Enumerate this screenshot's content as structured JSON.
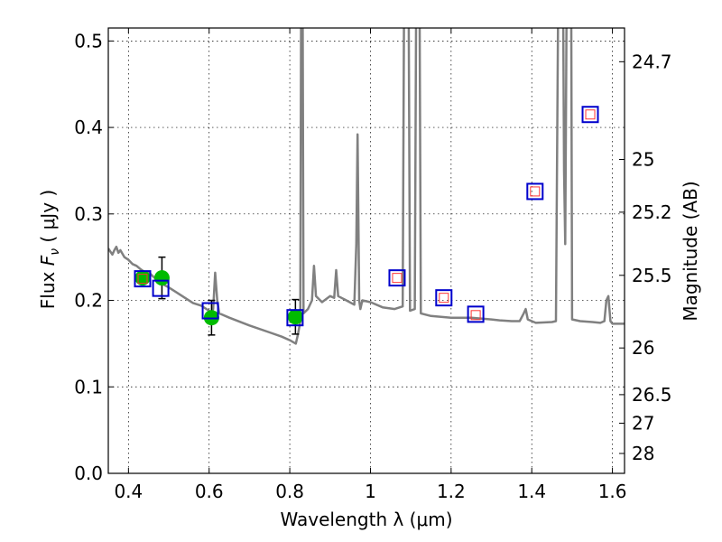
{
  "chart_data": {
    "type": "scatter",
    "title": "",
    "xlabel": "Wavelength  λ (μm)",
    "ylabel": "Flux  F_ν  ( μJy )",
    "ylabel_right": "Magnitude (AB)",
    "xlim": [
      0.35,
      1.63
    ],
    "ylim": [
      0.0,
      0.515
    ],
    "grid": true,
    "x_ticks": [
      {
        "v": 0.4,
        "label": "0.4"
      },
      {
        "v": 0.6,
        "label": "0.6"
      },
      {
        "v": 0.8,
        "label": "0.8"
      },
      {
        "v": 1.0,
        "label": "1"
      },
      {
        "v": 1.2,
        "label": "1.2"
      },
      {
        "v": 1.4,
        "label": "1.4"
      },
      {
        "v": 1.6,
        "label": "1.6"
      }
    ],
    "y_ticks": [
      {
        "v": 0.0,
        "label": "0.0"
      },
      {
        "v": 0.1,
        "label": "0.1"
      },
      {
        "v": 0.2,
        "label": "0.2"
      },
      {
        "v": 0.3,
        "label": "0.3"
      },
      {
        "v": 0.4,
        "label": "0.4"
      },
      {
        "v": 0.5,
        "label": "0.5"
      }
    ],
    "right_ticks": [
      {
        "flux": 0.476,
        "label": "24.7"
      },
      {
        "flux": 0.363,
        "label": "25"
      },
      {
        "flux": 0.302,
        "label": "25.2"
      },
      {
        "flux": 0.229,
        "label": "25.5"
      },
      {
        "flux": 0.145,
        "label": "26"
      },
      {
        "flux": 0.091,
        "label": "26.5"
      },
      {
        "flux": 0.058,
        "label": "27"
      },
      {
        "flux": 0.023,
        "label": "28"
      }
    ],
    "spectrum": {
      "color": "#808080",
      "points": [
        [
          0.35,
          0.26
        ],
        [
          0.36,
          0.253
        ],
        [
          0.365,
          0.258
        ],
        [
          0.37,
          0.262
        ],
        [
          0.375,
          0.255
        ],
        [
          0.38,
          0.258
        ],
        [
          0.39,
          0.25
        ],
        [
          0.4,
          0.247
        ],
        [
          0.41,
          0.242
        ],
        [
          0.42,
          0.24
        ],
        [
          0.43,
          0.236
        ],
        [
          0.44,
          0.233
        ],
        [
          0.45,
          0.233
        ],
        [
          0.46,
          0.228
        ],
        [
          0.47,
          0.224
        ],
        [
          0.48,
          0.22
        ],
        [
          0.5,
          0.215
        ],
        [
          0.52,
          0.209
        ],
        [
          0.54,
          0.203
        ],
        [
          0.56,
          0.197
        ],
        [
          0.58,
          0.194
        ],
        [
          0.6,
          0.188
        ],
        [
          0.605,
          0.186
        ],
        [
          0.61,
          0.19
        ],
        [
          0.615,
          0.232
        ],
        [
          0.62,
          0.2
        ],
        [
          0.625,
          0.185
        ],
        [
          0.65,
          0.18
        ],
        [
          0.7,
          0.171
        ],
        [
          0.75,
          0.163
        ],
        [
          0.78,
          0.158
        ],
        [
          0.8,
          0.154
        ],
        [
          0.815,
          0.15
        ],
        [
          0.82,
          0.16
        ],
        [
          0.826,
          0.175
        ],
        [
          0.828,
          0.52
        ],
        [
          0.832,
          0.52
        ],
        [
          0.834,
          0.185
        ],
        [
          0.845,
          0.19
        ],
        [
          0.855,
          0.2
        ],
        [
          0.86,
          0.24
        ],
        [
          0.865,
          0.205
        ],
        [
          0.88,
          0.198
        ],
        [
          0.9,
          0.205
        ],
        [
          0.91,
          0.203
        ],
        [
          0.915,
          0.235
        ],
        [
          0.92,
          0.205
        ],
        [
          0.94,
          0.2
        ],
        [
          0.96,
          0.195
        ],
        [
          0.965,
          0.265
        ],
        [
          0.968,
          0.392
        ],
        [
          0.972,
          0.2
        ],
        [
          0.975,
          0.19
        ],
        [
          0.98,
          0.2
        ],
        [
          1.0,
          0.198
        ],
        [
          1.03,
          0.192
        ],
        [
          1.06,
          0.19
        ],
        [
          1.08,
          0.193
        ],
        [
          1.083,
          0.52
        ],
        [
          1.095,
          0.52
        ],
        [
          1.098,
          0.188
        ],
        [
          1.11,
          0.19
        ],
        [
          1.113,
          0.52
        ],
        [
          1.122,
          0.52
        ],
        [
          1.125,
          0.185
        ],
        [
          1.15,
          0.182
        ],
        [
          1.2,
          0.18
        ],
        [
          1.25,
          0.18
        ],
        [
          1.3,
          0.178
        ],
        [
          1.32,
          0.177
        ],
        [
          1.35,
          0.176
        ],
        [
          1.37,
          0.176
        ],
        [
          1.38,
          0.185
        ],
        [
          1.385,
          0.19
        ],
        [
          1.39,
          0.178
        ],
        [
          1.4,
          0.176
        ],
        [
          1.41,
          0.174
        ],
        [
          1.45,
          0.175
        ],
        [
          1.46,
          0.176
        ],
        [
          1.465,
          0.52
        ],
        [
          1.478,
          0.52
        ],
        [
          1.48,
          0.35
        ],
        [
          1.483,
          0.265
        ],
        [
          1.486,
          0.52
        ],
        [
          1.498,
          0.52
        ],
        [
          1.5,
          0.178
        ],
        [
          1.52,
          0.176
        ],
        [
          1.55,
          0.175
        ],
        [
          1.57,
          0.174
        ],
        [
          1.58,
          0.176
        ],
        [
          1.585,
          0.2
        ],
        [
          1.59,
          0.205
        ],
        [
          1.595,
          0.176
        ],
        [
          1.6,
          0.173
        ],
        [
          1.63,
          0.173
        ]
      ]
    },
    "series": [
      {
        "name": "",
        "marker": "circle",
        "color": "#00bb00",
        "points": [
          {
            "x": 0.435,
            "y": 0.226,
            "yerr": 0.0
          },
          {
            "x": 0.483,
            "y": 0.226,
            "yerr": 0.024
          },
          {
            "x": 0.606,
            "y": 0.18,
            "yerr": 0.02
          },
          {
            "x": 0.814,
            "y": 0.181,
            "yerr": 0.02
          }
        ]
      },
      {
        "name": "",
        "marker": "square",
        "color": "#0000cc",
        "points": [
          {
            "x": 0.435,
            "y": 0.225
          },
          {
            "x": 0.48,
            "y": 0.214
          },
          {
            "x": 0.603,
            "y": 0.188
          },
          {
            "x": 0.813,
            "y": 0.18
          },
          {
            "x": 1.066,
            "y": 0.226
          },
          {
            "x": 1.182,
            "y": 0.203
          },
          {
            "x": 1.261,
            "y": 0.184
          },
          {
            "x": 1.408,
            "y": 0.326
          },
          {
            "x": 1.545,
            "y": 0.415
          }
        ]
      },
      {
        "name": "",
        "marker": "small-square",
        "color": "#ff3333",
        "points": [
          {
            "x": 0.435,
            "y": 0.225
          },
          {
            "x": 1.066,
            "y": 0.226
          },
          {
            "x": 1.182,
            "y": 0.203
          },
          {
            "x": 1.261,
            "y": 0.183
          },
          {
            "x": 1.408,
            "y": 0.326
          },
          {
            "x": 1.545,
            "y": 0.415
          }
        ]
      }
    ]
  }
}
